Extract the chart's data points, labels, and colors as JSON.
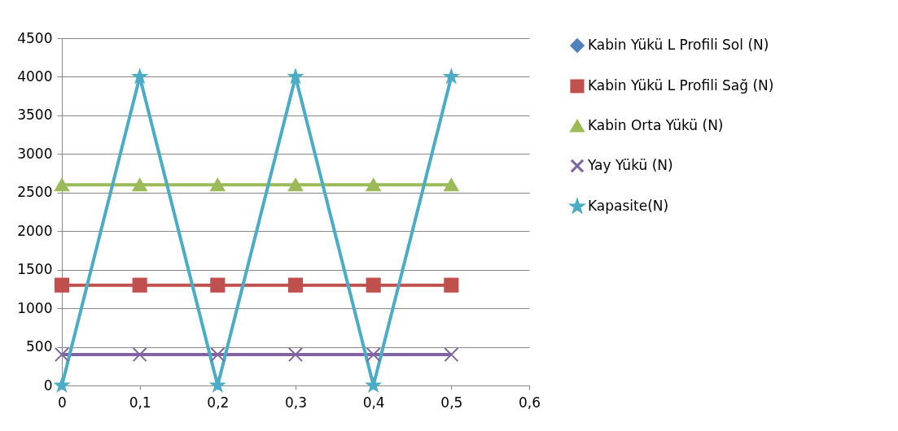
{
  "chart_data": {
    "type": "line",
    "x": [
      0,
      0.1,
      0.2,
      0.3,
      0.4,
      0.5
    ],
    "series": [
      {
        "name": "Kabin Yükü L Profili Sol (N)",
        "color": "#4f81bd",
        "marker": "diamond",
        "values": [
          null,
          null,
          null,
          null,
          null,
          null
        ]
      },
      {
        "name": "Kabin Yükü L Profili Sağ (N)",
        "color": "#c0504d",
        "marker": "square",
        "values": [
          1300,
          1300,
          1300,
          1300,
          1300,
          1300
        ]
      },
      {
        "name": "Kabin Orta Yükü (N)",
        "color": "#9bbb59",
        "marker": "triangle",
        "values": [
          2600,
          2600,
          2600,
          2600,
          2600,
          2600
        ]
      },
      {
        "name": "Yay Yükü (N)",
        "color": "#8064a2",
        "marker": "cross",
        "values": [
          400,
          400,
          400,
          400,
          400,
          400
        ]
      },
      {
        "name": "Kapasite(N)",
        "color": "#4bacc6",
        "marker": "star",
        "values": [
          0,
          4000,
          0,
          4000,
          0,
          4000
        ]
      }
    ],
    "xlim": [
      0,
      0.6
    ],
    "xticks": [
      0,
      {
        "value": 0.1,
        "label": "0,1"
      },
      {
        "value": 0.2,
        "label": "0,2"
      },
      {
        "value": 0.3,
        "label": "0,3"
      },
      {
        "value": 0.4,
        "label": "0,4"
      },
      {
        "value": 0.5,
        "label": "0,5"
      },
      {
        "value": 0.6,
        "label": "0,6"
      }
    ],
    "ylim": [
      0,
      4500
    ],
    "yticks": [
      0,
      500,
      1000,
      1500,
      2000,
      2500,
      3000,
      3500,
      4000,
      4500
    ],
    "grid": "y",
    "legend": "right",
    "line_style": "solid"
  }
}
